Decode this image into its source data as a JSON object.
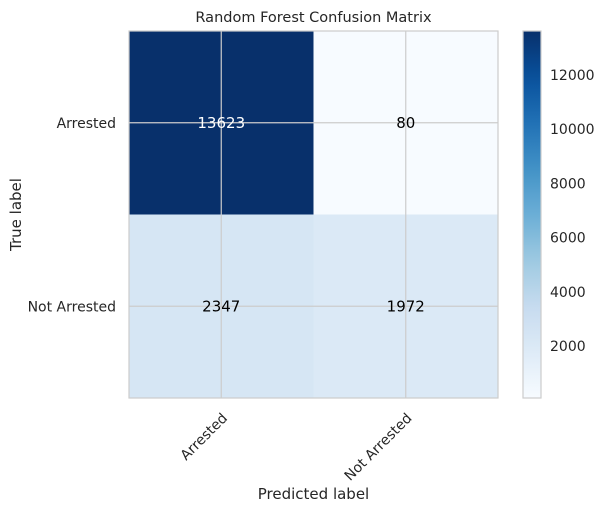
{
  "chart_data": {
    "type": "heatmap",
    "title": "Random Forest Confusion Matrix",
    "xlabel": "Predicted label",
    "ylabel": "True label",
    "x_categories": [
      "Arrested",
      "Not Arrested"
    ],
    "y_categories": [
      "Arrested",
      "Not Arrested"
    ],
    "values": [
      [
        13623,
        80
      ],
      [
        2347,
        1972
      ]
    ],
    "colormap": "Blues",
    "colorbar": {
      "min": 80,
      "max": 13623,
      "ticks": [
        2000,
        4000,
        6000,
        8000,
        10000,
        12000
      ]
    },
    "grid": true,
    "text_colors": {
      "light": "#ffffff",
      "dark": "#000000"
    }
  }
}
